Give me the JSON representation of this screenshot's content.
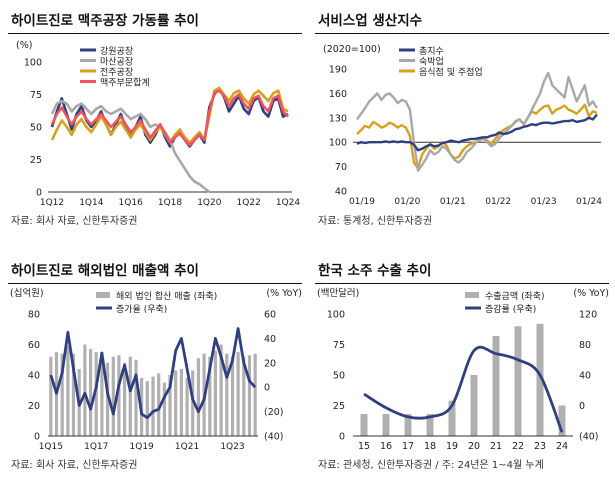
{
  "charts": [
    {
      "id": "c1",
      "title": "하이트진로 맥주공장 가동률 추이",
      "source": "자료: 회사 자료, 신한투자증권",
      "chart_data": {
        "type": "line",
        "unit_left": "(%)",
        "ylim": [
          0,
          100
        ],
        "yticks": [
          "0",
          "25",
          "50",
          "75",
          "100"
        ],
        "xticks": [
          "1Q12",
          "1Q14",
          "1Q16",
          "1Q18",
          "1Q20",
          "1Q22",
          "1Q24"
        ],
        "x": [
          "1Q12",
          "2Q12",
          "3Q12",
          "4Q12",
          "1Q13",
          "2Q13",
          "3Q13",
          "4Q13",
          "1Q14",
          "2Q14",
          "3Q14",
          "4Q14",
          "1Q15",
          "2Q15",
          "3Q15",
          "4Q15",
          "1Q16",
          "2Q16",
          "3Q16",
          "4Q16",
          "1Q17",
          "2Q17",
          "3Q17",
          "4Q17",
          "1Q18",
          "2Q18",
          "3Q18",
          "4Q18",
          "1Q19",
          "2Q19",
          "3Q19",
          "4Q19",
          "1Q20",
          "2Q20",
          "3Q20",
          "4Q20",
          "1Q21",
          "2Q21",
          "3Q21",
          "4Q21",
          "1Q22",
          "2Q22",
          "3Q22",
          "4Q22",
          "1Q23",
          "2Q23",
          "3Q23",
          "4Q23",
          "1Q24"
        ],
        "series": [
          {
            "name": "강원공장",
            "color": "#2f3f7f",
            "values": [
              50,
              62,
              72,
              60,
              48,
              60,
              66,
              55,
              50,
              55,
              62,
              52,
              44,
              52,
              60,
              50,
              42,
              50,
              58,
              44,
              38,
              44,
              52,
              42,
              35,
              42,
              48,
              40,
              35,
              40,
              44,
              38,
              65,
              75,
              80,
              73,
              62,
              68,
              74,
              64,
              60,
              70,
              73,
              62,
              58,
              70,
              72,
              58,
              60
            ]
          },
          {
            "name": "마산공장",
            "color": "#a8a8a8",
            "values": [
              60,
              68,
              70,
              68,
              62,
              66,
              68,
              64,
              60,
              64,
              66,
              62,
              60,
              62,
              64,
              60,
              56,
              58,
              60,
              56,
              50,
              52,
              50,
              46,
              40,
              30,
              24,
              18,
              12,
              8,
              6,
              3,
              0,
              null,
              null,
              null,
              null,
              null,
              null,
              null,
              null,
              null,
              null,
              null,
              null,
              null,
              null,
              null,
              null
            ]
          },
          {
            "name": "전주공장",
            "color": "#d6a21e",
            "values": [
              40,
              48,
              55,
              50,
              44,
              52,
              56,
              50,
              46,
              52,
              58,
              52,
              44,
              50,
              54,
              48,
              42,
              48,
              52,
              46,
              40,
              46,
              50,
              44,
              38,
              44,
              48,
              42,
              38,
              42,
              46,
              40,
              58,
              78,
              80,
              75,
              70,
              76,
              78,
              72,
              68,
              75,
              78,
              74,
              70,
              76,
              78,
              64,
              62
            ]
          },
          {
            "name": "맥주부문합계",
            "color": "#f0545e",
            "values": [
              52,
              60,
              65,
              58,
              52,
              58,
              62,
              56,
              52,
              56,
              60,
              55,
              50,
              54,
              58,
              52,
              46,
              50,
              55,
              48,
              42,
              47,
              52,
              45,
              38,
              42,
              45,
              40,
              36,
              40,
              44,
              40,
              62,
              76,
              78,
              74,
              66,
              72,
              75,
              68,
              64,
              72,
              74,
              66,
              62,
              72,
              74,
              62,
              58
            ]
          }
        ]
      }
    },
    {
      "id": "c2",
      "title": "서비스업 생산지수",
      "source": "자료: 통계청, 신한투자증권",
      "chart_data": {
        "type": "line",
        "unit_left": "(2020=100)",
        "ylim": [
          40,
          190
        ],
        "yticks": [
          "40",
          "70",
          "100",
          "130",
          "160",
          "190"
        ],
        "xticks": [
          "01/19",
          "01/20",
          "01/21",
          "01/22",
          "01/23",
          "01/24"
        ],
        "series": [
          {
            "name": "총지수",
            "color": "#2f3f7f",
            "values": [
              98,
              100,
              99,
              100,
              100,
              100,
              100,
              101,
              100,
              101,
              100,
              101,
              100,
              100,
              97,
              90,
              92,
              95,
              97,
              95,
              96,
              99,
              100,
              102,
              101,
              100,
              102,
              103,
              104,
              104,
              105,
              106,
              106,
              108,
              109,
              112,
              110,
              111,
              113,
              116,
              117,
              119,
              120,
              122,
              121,
              123,
              124,
              124,
              123,
              124,
              125,
              126,
              126,
              127,
              125,
              126,
              127,
              130,
              128,
              134
            ]
          },
          {
            "name": "숙박업",
            "color": "#a8a8a8",
            "values": [
              128,
              135,
              142,
              150,
              155,
              160,
              152,
              158,
              160,
              155,
              148,
              152,
              150,
              140,
              100,
              65,
              72,
              80,
              90,
              85,
              88,
              95,
              92,
              85,
              78,
              75,
              80,
              88,
              92,
              98,
              103,
              105,
              100,
              95,
              98,
              105,
              110,
              115,
              120,
              125,
              128,
              122,
              130,
              140,
              150,
              160,
              175,
              185,
              170,
              165,
              160,
              155,
              180,
              165,
              150,
              160,
              170,
              145,
              150,
              142
            ]
          },
          {
            "name": "음식점 및 주점업",
            "color": "#d6a21e",
            "values": [
              110,
              115,
              120,
              118,
              125,
              122,
              118,
              120,
              124,
              122,
              118,
              121,
              118,
              108,
              75,
              68,
              85,
              92,
              98,
              92,
              95,
              100,
              96,
              85,
              80,
              82,
              90,
              95,
              98,
              100,
              102,
              104,
              102,
              98,
              104,
              110,
              115,
              118,
              120,
              126,
              128,
              122,
              130,
              138,
              135,
              140,
              144,
              145,
              135,
              140,
              142,
              145,
              140,
              138,
              135,
              140,
              146,
              132,
              138,
              136
            ]
          }
        ]
      }
    },
    {
      "id": "c3",
      "title": "하이트진로 해외법인 매출액 추이",
      "source": "자료: 회사 자료, 신한투자증권",
      "chart_data": {
        "type": "bar",
        "unit_left": "(십억원)",
        "unit_right": "(% YoY)",
        "ylim": [
          0,
          80
        ],
        "ylim_right": [
          -40,
          60
        ],
        "yticks": [
          "0",
          "20",
          "40",
          "60",
          "80"
        ],
        "yticks_right": [
          "(40)",
          "(20)",
          "0",
          "20",
          "40",
          "60"
        ],
        "xticks": [
          "1Q15",
          "1Q17",
          "1Q19",
          "1Q21",
          "1Q23"
        ],
        "series": [
          {
            "name": "해외 법인 합산 매출 (좌축)",
            "kind": "bar",
            "color": "#b0b0b0",
            "values": [
              52,
              55,
              54,
              59,
              54,
              44,
              60,
              57,
              55,
              55,
              48,
              52,
              53,
              48,
              52,
              50,
              38,
              36,
              39,
              41,
              35,
              40,
              43,
              44,
              38,
              43,
              51,
              54,
              52,
              56,
              60,
              54,
              52,
              55,
              52,
              53,
              54
            ]
          },
          {
            "name": "증가율 (우축)",
            "kind": "line",
            "color": "#2f3f7f",
            "values": [
              10,
              -5,
              12,
              45,
              15,
              -15,
              -5,
              -18,
              0,
              28,
              -5,
              -22,
              2,
              18,
              -3,
              10,
              -22,
              -25,
              -20,
              -18,
              -8,
              0,
              30,
              40,
              15,
              -10,
              -20,
              -10,
              15,
              40,
              25,
              8,
              22,
              48,
              20,
              5,
              0
            ]
          }
        ]
      }
    },
    {
      "id": "c4",
      "title": "한국 소주 수출 추이",
      "source": "자료: 관세청, 신한투자증권 / 주: 24년은 1~4월 누계",
      "chart_data": {
        "type": "bar",
        "unit_left": "(백만달러)",
        "unit_right": "(% YoY)",
        "ylim": [
          0,
          100
        ],
        "ylim_right": [
          -40,
          120
        ],
        "yticks": [
          "0",
          "25",
          "50",
          "75",
          "100"
        ],
        "yticks_right": [
          "(40)",
          "0",
          "40",
          "80",
          "120"
        ],
        "categories": [
          "15",
          "16",
          "17",
          "18",
          "19",
          "20",
          "21",
          "22",
          "23",
          "24"
        ],
        "series": [
          {
            "name": "수출금액 (좌축)",
            "kind": "bar",
            "color": "#b0b0b0",
            "values": [
              18,
              18,
              18,
              18,
              29,
              50,
              82,
              90,
              92,
              25
            ]
          },
          {
            "name": "증감률 (우축)",
            "kind": "line",
            "color": "#2f3f7f",
            "values": [
              15,
              -3,
              -15,
              -15,
              0,
              72,
              68,
              60,
              40,
              -35
            ]
          }
        ]
      }
    }
  ]
}
